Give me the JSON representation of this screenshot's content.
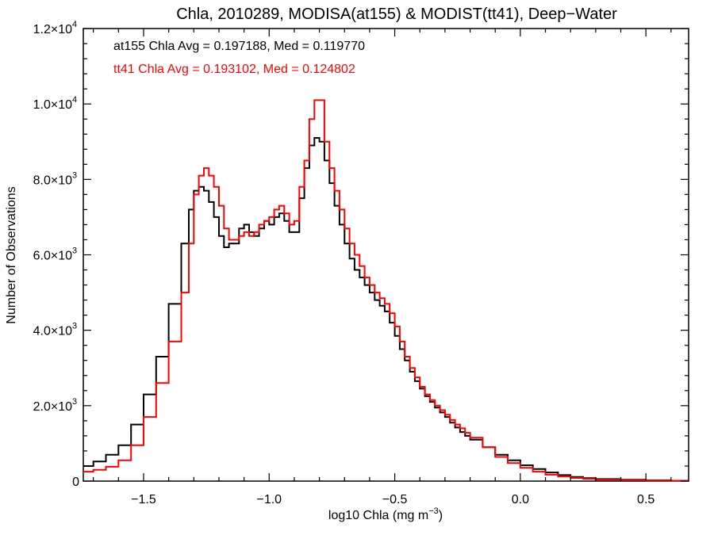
{
  "chart_data": {
    "type": "line",
    "step": true,
    "title": "Chla, 2010289, MODISA(at155) & MODIST(tt41), Deep−Water",
    "xlabel": "log10 Chla (mg m",
    "xlabel_sup": "−3",
    "xlabel_tail": ")",
    "ylabel": "Number of Observations",
    "xlim": [
      -1.74,
      0.67
    ],
    "ylim": [
      0,
      12000
    ],
    "grid": false,
    "x_ticks": [
      {
        "value": -1.5,
        "label": "−1.5"
      },
      {
        "value": -1.0,
        "label": "−1.0"
      },
      {
        "value": -0.5,
        "label": "−0.5"
      },
      {
        "value": 0.0,
        "label": "0.0"
      },
      {
        "value": 0.5,
        "label": "0.5"
      }
    ],
    "y_ticks": [
      {
        "value": 0,
        "mant": "0",
        "exp": ""
      },
      {
        "value": 2000,
        "mant": "2.0×10",
        "exp": "3"
      },
      {
        "value": 4000,
        "mant": "4.0×10",
        "exp": "3"
      },
      {
        "value": 6000,
        "mant": "6.0×10",
        "exp": "3"
      },
      {
        "value": 8000,
        "mant": "8.0×10",
        "exp": "3"
      },
      {
        "value": 10000,
        "mant": "1.0×10",
        "exp": "4"
      },
      {
        "value": 12000,
        "mant": "1.2×10",
        "exp": "4"
      }
    ],
    "annotations": [
      {
        "text": "at155 Chla Avg = 0.197188, Med = 0.119770",
        "color": "#000000"
      },
      {
        "text": "tt41 Chla Avg = 0.193102, Med = 0.124802",
        "color": "#ff0000"
      }
    ],
    "series": [
      {
        "color": "#000000",
        "points": [
          [
            -1.74,
            400
          ],
          [
            -1.7,
            520
          ],
          [
            -1.65,
            700
          ],
          [
            -1.6,
            950
          ],
          [
            -1.55,
            1500
          ],
          [
            -1.5,
            2300
          ],
          [
            -1.45,
            3300
          ],
          [
            -1.4,
            4700
          ],
          [
            -1.35,
            6300
          ],
          [
            -1.32,
            7200
          ],
          [
            -1.3,
            7700
          ],
          [
            -1.28,
            7800
          ],
          [
            -1.26,
            7700
          ],
          [
            -1.24,
            7400
          ],
          [
            -1.22,
            7000
          ],
          [
            -1.2,
            6500
          ],
          [
            -1.18,
            6200
          ],
          [
            -1.16,
            6300
          ],
          [
            -1.14,
            6300
          ],
          [
            -1.12,
            6700
          ],
          [
            -1.1,
            6800
          ],
          [
            -1.08,
            6600
          ],
          [
            -1.06,
            6500
          ],
          [
            -1.04,
            6700
          ],
          [
            -1.02,
            6900
          ],
          [
            -1.0,
            6800
          ],
          [
            -0.98,
            7000
          ],
          [
            -0.96,
            7100
          ],
          [
            -0.94,
            6900
          ],
          [
            -0.92,
            6600
          ],
          [
            -0.9,
            6600
          ],
          [
            -0.88,
            7500
          ],
          [
            -0.86,
            8300
          ],
          [
            -0.84,
            8900
          ],
          [
            -0.82,
            9100
          ],
          [
            -0.8,
            9000
          ],
          [
            -0.78,
            8500
          ],
          [
            -0.76,
            7900
          ],
          [
            -0.74,
            7300
          ],
          [
            -0.72,
            6800
          ],
          [
            -0.7,
            6300
          ],
          [
            -0.68,
            5900
          ],
          [
            -0.66,
            5600
          ],
          [
            -0.64,
            5400
          ],
          [
            -0.62,
            5200
          ],
          [
            -0.6,
            5000
          ],
          [
            -0.58,
            4800
          ],
          [
            -0.56,
            4650
          ],
          [
            -0.54,
            4500
          ],
          [
            -0.52,
            4200
          ],
          [
            -0.5,
            3850
          ],
          [
            -0.48,
            3500
          ],
          [
            -0.46,
            3200
          ],
          [
            -0.44,
            2900
          ],
          [
            -0.42,
            2650
          ],
          [
            -0.4,
            2450
          ],
          [
            -0.38,
            2250
          ],
          [
            -0.36,
            2100
          ],
          [
            -0.34,
            1950
          ],
          [
            -0.32,
            1820
          ],
          [
            -0.3,
            1700
          ],
          [
            -0.28,
            1550
          ],
          [
            -0.26,
            1420
          ],
          [
            -0.24,
            1300
          ],
          [
            -0.22,
            1200
          ],
          [
            -0.2,
            1100
          ],
          [
            -0.15,
            900
          ],
          [
            -0.1,
            700
          ],
          [
            -0.05,
            550
          ],
          [
            0.0,
            420
          ],
          [
            0.05,
            320
          ],
          [
            0.1,
            230
          ],
          [
            0.15,
            160
          ],
          [
            0.2,
            110
          ],
          [
            0.25,
            80
          ],
          [
            0.3,
            55
          ],
          [
            0.4,
            35
          ],
          [
            0.5,
            20
          ],
          [
            0.6,
            10
          ],
          [
            0.67,
            5
          ]
        ]
      },
      {
        "color": "#ff0000",
        "points": [
          [
            -1.74,
            250
          ],
          [
            -1.7,
            300
          ],
          [
            -1.65,
            380
          ],
          [
            -1.6,
            550
          ],
          [
            -1.55,
            950
          ],
          [
            -1.5,
            1700
          ],
          [
            -1.45,
            2600
          ],
          [
            -1.4,
            3700
          ],
          [
            -1.35,
            5000
          ],
          [
            -1.32,
            6300
          ],
          [
            -1.3,
            7600
          ],
          [
            -1.28,
            8100
          ],
          [
            -1.26,
            8300
          ],
          [
            -1.24,
            8100
          ],
          [
            -1.22,
            7800
          ],
          [
            -1.2,
            7300
          ],
          [
            -1.18,
            6700
          ],
          [
            -1.16,
            6400
          ],
          [
            -1.14,
            6400
          ],
          [
            -1.12,
            6500
          ],
          [
            -1.1,
            6600
          ],
          [
            -1.08,
            6500
          ],
          [
            -1.06,
            6600
          ],
          [
            -1.04,
            6800
          ],
          [
            -1.02,
            6900
          ],
          [
            -1.0,
            7000
          ],
          [
            -0.98,
            7200
          ],
          [
            -0.96,
            7300
          ],
          [
            -0.94,
            7100
          ],
          [
            -0.92,
            6800
          ],
          [
            -0.9,
            6900
          ],
          [
            -0.88,
            7800
          ],
          [
            -0.86,
            8500
          ],
          [
            -0.84,
            9600
          ],
          [
            -0.82,
            10100
          ],
          [
            -0.8,
            10100
          ],
          [
            -0.78,
            9000
          ],
          [
            -0.76,
            8300
          ],
          [
            -0.74,
            7700
          ],
          [
            -0.72,
            7200
          ],
          [
            -0.7,
            6700
          ],
          [
            -0.68,
            6300
          ],
          [
            -0.66,
            6000
          ],
          [
            -0.64,
            5700
          ],
          [
            -0.62,
            5400
          ],
          [
            -0.6,
            5200
          ],
          [
            -0.58,
            5000
          ],
          [
            -0.56,
            4850
          ],
          [
            -0.54,
            4700
          ],
          [
            -0.52,
            4450
          ],
          [
            -0.5,
            4100
          ],
          [
            -0.48,
            3700
          ],
          [
            -0.46,
            3300
          ],
          [
            -0.44,
            3000
          ],
          [
            -0.42,
            2750
          ],
          [
            -0.4,
            2500
          ],
          [
            -0.38,
            2300
          ],
          [
            -0.36,
            2150
          ],
          [
            -0.34,
            2000
          ],
          [
            -0.32,
            1880
          ],
          [
            -0.3,
            1760
          ],
          [
            -0.28,
            1620
          ],
          [
            -0.26,
            1500
          ],
          [
            -0.24,
            1400
          ],
          [
            -0.22,
            1280
          ],
          [
            -0.2,
            1150
          ],
          [
            -0.15,
            900
          ],
          [
            -0.1,
            640
          ],
          [
            -0.05,
            480
          ],
          [
            0.0,
            350
          ],
          [
            0.05,
            250
          ],
          [
            0.1,
            170
          ],
          [
            0.15,
            120
          ],
          [
            0.2,
            85
          ],
          [
            0.25,
            60
          ],
          [
            0.3,
            40
          ],
          [
            0.4,
            25
          ],
          [
            0.5,
            15
          ],
          [
            0.6,
            8
          ],
          [
            0.67,
            4
          ]
        ]
      }
    ]
  }
}
